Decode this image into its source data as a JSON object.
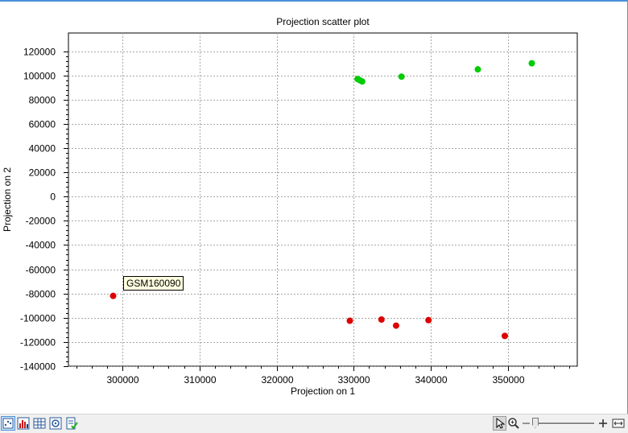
{
  "chart_data": {
    "type": "scatter",
    "title": "Projection scatter plot",
    "xlabel": "Projection on 1",
    "ylabel": "Projection on 2",
    "xlim": [
      293000,
      359000
    ],
    "ylim": [
      -140000,
      135000
    ],
    "xticks": [
      300000,
      310000,
      320000,
      330000,
      340000,
      350000
    ],
    "yticks": [
      120000,
      100000,
      80000,
      60000,
      40000,
      20000,
      0,
      -20000,
      -40000,
      -60000,
      -80000,
      -100000,
      -120000,
      -140000
    ],
    "grid": true,
    "series": [
      {
        "color": "#00cc00",
        "points": [
          {
            "x": 330500,
            "y": 97000
          },
          {
            "x": 330800,
            "y": 96000
          },
          {
            "x": 331100,
            "y": 95000
          },
          {
            "x": 336200,
            "y": 99000
          },
          {
            "x": 346100,
            "y": 105000
          },
          {
            "x": 353100,
            "y": 110000
          }
        ]
      },
      {
        "color": "#dd0000",
        "points": [
          {
            "x": 298800,
            "y": -82000
          },
          {
            "x": 329500,
            "y": -102500
          },
          {
            "x": 333600,
            "y": -101500
          },
          {
            "x": 335500,
            "y": -106500
          },
          {
            "x": 339700,
            "y": -102000
          },
          {
            "x": 349600,
            "y": -115000
          }
        ]
      }
    ],
    "tooltip": {
      "text": "GSM160090"
    }
  },
  "colors": {
    "accent": "#4a90d9",
    "green_points": "#00cc00",
    "red_points": "#dd0000"
  },
  "toolbar": {
    "left_icons": [
      "scatter-view-icon",
      "histogram-view-icon",
      "table-view-icon",
      "settings-view-icon",
      "history-view-icon"
    ],
    "right_icons": [
      "pointer-tool-icon",
      "zoom-tool-icon",
      "zoom-out-icon",
      "zoom-in-icon",
      "fit-width-icon"
    ],
    "zoom_level": 0.05
  }
}
